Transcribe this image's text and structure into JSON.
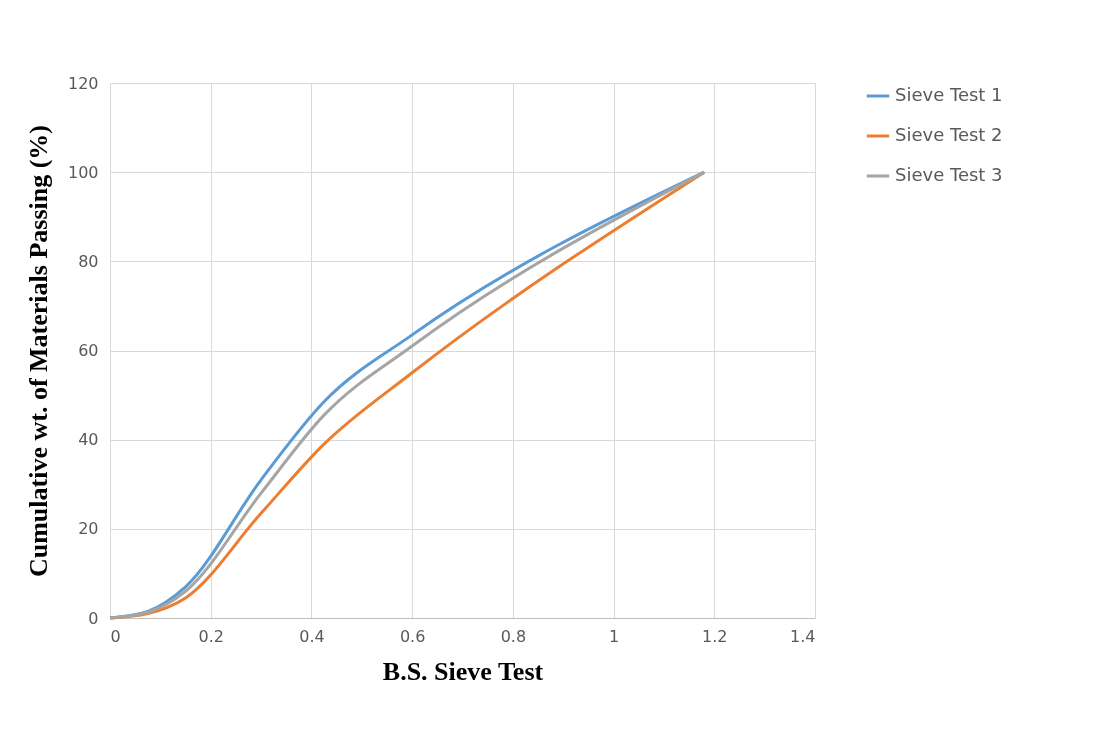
{
  "chart_data": {
    "type": "line",
    "xlabel": "B.S. Sieve Test",
    "ylabel": "Cumulative wt. of Materials  Passing (%)",
    "x": [
      0,
      0.075,
      0.15,
      0.3,
      0.425,
      0.6,
      1.18
    ],
    "series": [
      {
        "name": "Sieve Test 1",
        "color": "#5b9bd5",
        "values": [
          0,
          1.5,
          7,
          31,
          48.5,
          63.5,
          100
        ]
      },
      {
        "name": "Sieve Test 2",
        "color": "#ed7d31",
        "values": [
          0,
          1,
          4.5,
          23.5,
          39,
          55,
          100
        ]
      },
      {
        "name": "Sieve Test 3",
        "color": "#a5a5a5",
        "values": [
          0,
          1.3,
          6,
          28,
          45.5,
          61,
          100
        ]
      }
    ],
    "xlim": [
      0,
      1.4
    ],
    "xticks": [
      0,
      0.2,
      0.4,
      0.6,
      0.8,
      1,
      1.2,
      1.4
    ],
    "ylim": [
      0,
      120
    ],
    "yticks": [
      0,
      20,
      40,
      60,
      80,
      100,
      120
    ],
    "grid": true,
    "legend": "right",
    "marker": "none",
    "line_style": "solid"
  }
}
